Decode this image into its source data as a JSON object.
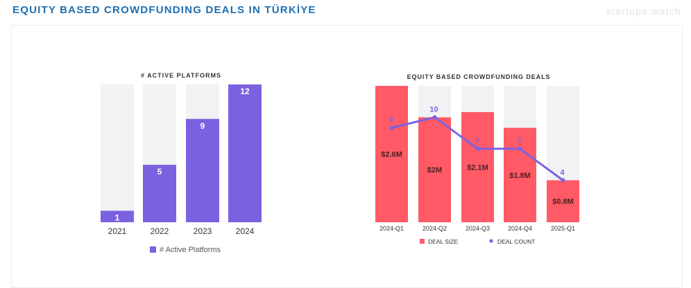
{
  "header": {
    "title": "EQUITY BASED CROWDFUNDING DEALS IN TÜRKİYE",
    "brand": "startups.watch"
  },
  "colors": {
    "title": "#1e6fb0",
    "purple": "#7b61e0",
    "red": "#ff5a66",
    "track": "#f1f2f4",
    "line": "#7b61e0"
  },
  "chart_data": [
    {
      "type": "bar",
      "title": "# ACTIVE PLATFORMS",
      "categories": [
        "2021",
        "2022",
        "2023",
        "2024"
      ],
      "series": [
        {
          "name": "# Active Platforms",
          "values": [
            1,
            5,
            9,
            12
          ]
        }
      ],
      "ylim": [
        0,
        12
      ],
      "legend": "bottom",
      "grid": false
    },
    {
      "type": "bar",
      "title": "EQUITY BASED CROWDFUNDING DEALS",
      "categories": [
        "2024-Q1",
        "2024-Q2",
        "2024-Q3",
        "2024-Q4",
        "2025-Q1"
      ],
      "series": [
        {
          "name": "DEAL SIZE",
          "type": "bar",
          "values": [
            2.6,
            2.0,
            2.1,
            1.8,
            0.8
          ],
          "labels": [
            "$2.6M",
            "$2M",
            "$2.1M",
            "$1.8M",
            "$0.8M"
          ]
        },
        {
          "name": "DEAL COUNT",
          "type": "line",
          "values": [
            9,
            10,
            7,
            7,
            4
          ]
        }
      ],
      "ylim": [
        0,
        2.6
      ],
      "y2lim": [
        0,
        13
      ],
      "legend": "bottom",
      "grid": false
    }
  ]
}
